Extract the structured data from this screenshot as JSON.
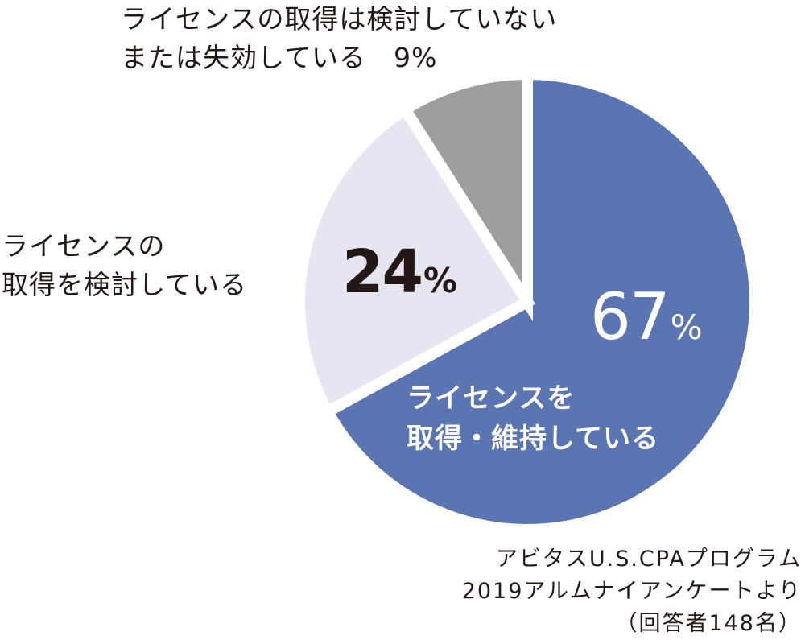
{
  "chart_data": {
    "type": "pie",
    "slices": [
      {
        "label_lines": [
          "ライセンスを",
          "取得・維持している"
        ],
        "value": 67,
        "value_text": "67",
        "color": "#5b74b2"
      },
      {
        "label_lines": [
          "ライセンスの",
          "取得を検討している"
        ],
        "value": 24,
        "value_text": "24",
        "color": "#e6e6f2"
      },
      {
        "label_lines": [
          "ライセンスの取得は検討していない",
          "または失効している　9%"
        ],
        "value": 9,
        "value_text": "9",
        "color": "#9d9e9f"
      }
    ],
    "percent_symbol": "%",
    "start_angle_deg": 0,
    "direction": "clockwise",
    "legend": "none",
    "note_lines": [
      "アビタスU.S.CPAプログラム",
      "2019アルムナイアンケートより",
      "（回答者148名）"
    ]
  }
}
